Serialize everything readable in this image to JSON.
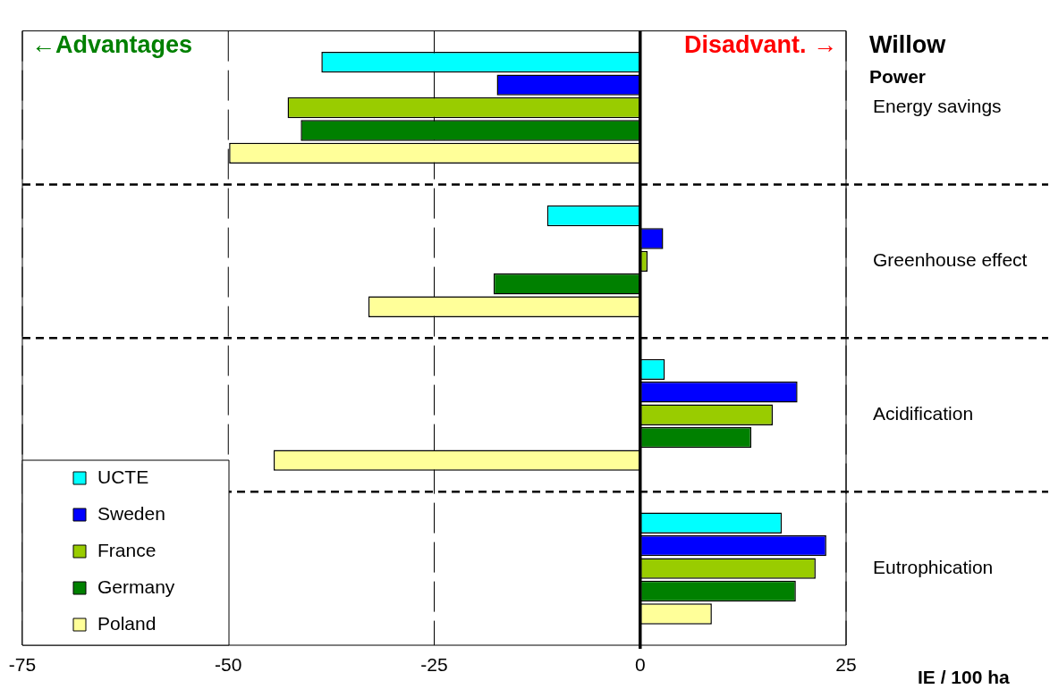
{
  "chart_data": {
    "type": "bar",
    "orientation": "horizontal",
    "title": "Willow",
    "subtitle": "Power",
    "xlabel": "IE / 100 ha",
    "annotations": [
      "←Advantages",
      "Disadvant. →"
    ],
    "categories": [
      "Energy savings",
      "Greenhouse effect",
      "Acidification",
      "Eutrophication"
    ],
    "series": [
      {
        "name": "UCTE",
        "color": "#00ffff",
        "values": [
          -38.7,
          -11.3,
          3.0,
          17.2
        ]
      },
      {
        "name": "Sweden",
        "color": "#0000ff",
        "values": [
          -17.4,
          2.8,
          19.1,
          22.6
        ]
      },
      {
        "name": "France",
        "color": "#99cc00",
        "values": [
          -42.8,
          0.9,
          16.1,
          21.3
        ]
      },
      {
        "name": "Germany",
        "color": "#008000",
        "values": [
          -41.2,
          -17.8,
          13.5,
          18.9
        ]
      },
      {
        "name": "Poland",
        "color": "#ffff99",
        "values": [
          -49.9,
          -33.0,
          -44.5,
          8.7
        ]
      }
    ],
    "xlim": [
      -75,
      25
    ],
    "xticks": [
      -75,
      -50,
      -25,
      0,
      25
    ],
    "grid": true,
    "legend": "bottom left"
  }
}
